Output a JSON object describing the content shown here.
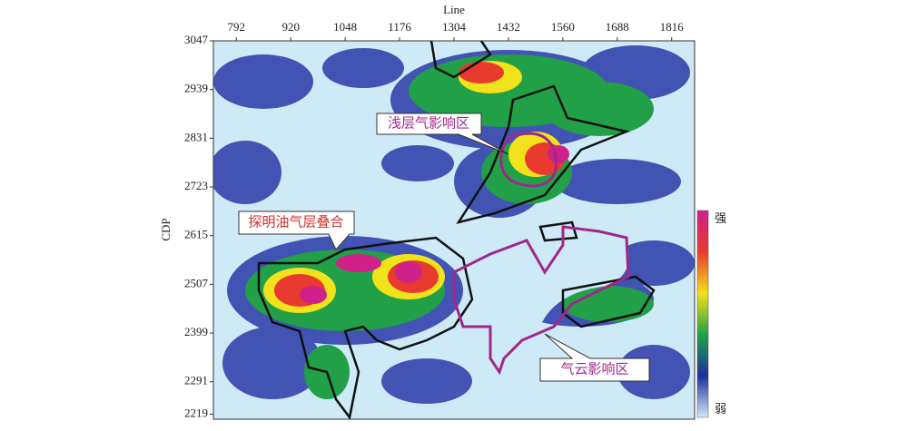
{
  "chart_data": {
    "type": "heatmap",
    "x_label": "Line",
    "y_label": "CDP",
    "xlim": [
      738,
      1870
    ],
    "ylim": [
      2208,
      3047
    ],
    "xticks": [
      792,
      920,
      1048,
      1176,
      1304,
      1432,
      1560,
      1688,
      1816
    ],
    "yticks": [
      3047,
      2939,
      2831,
      2723,
      2615,
      2507,
      2399,
      2291,
      2219
    ],
    "colorscale": [
      "#d0208a",
      "#e83a2e",
      "#f2e21c",
      "#22a048",
      "#1d2f9c",
      "#cfeaf7"
    ],
    "colorbar_labels": [
      "强",
      "弱"
    ],
    "annotations": [
      "浅层气影响区",
      "探明油气层叠合",
      "气云影响区"
    ]
  }
}
